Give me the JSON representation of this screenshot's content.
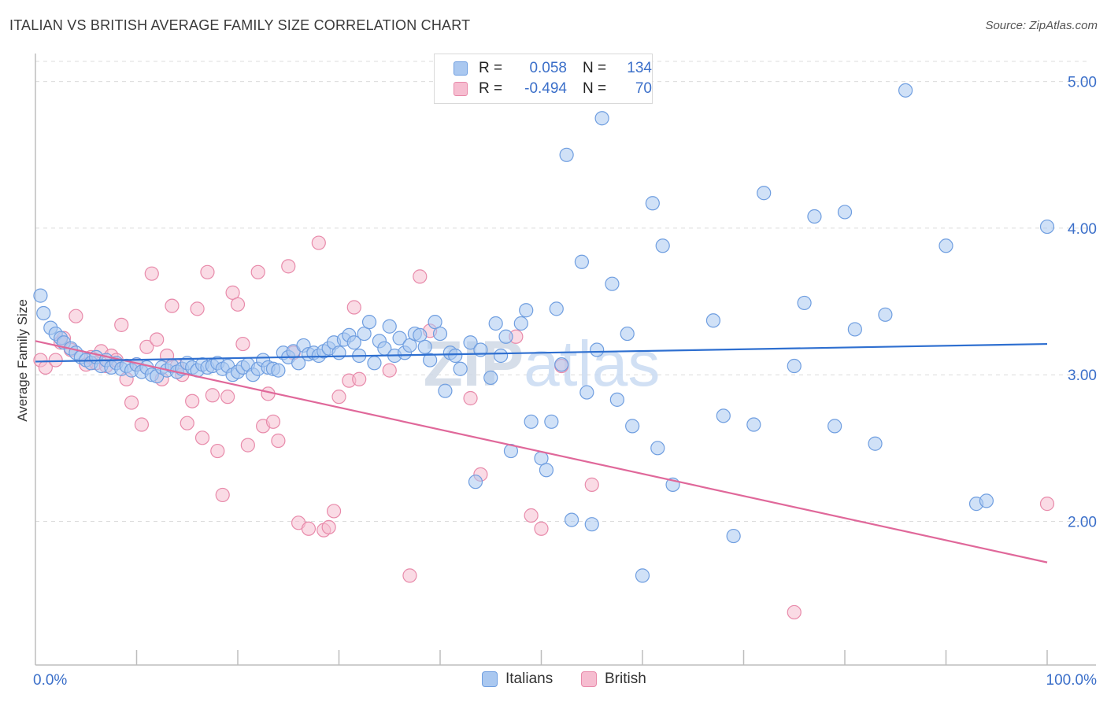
{
  "header": {
    "title": "ITALIAN VS BRITISH AVERAGE FAMILY SIZE CORRELATION CHART",
    "source": "Source: ZipAtlas.com"
  },
  "watermark": "ZIPatlas",
  "colors": {
    "italians_fill": "#aac8f0",
    "italians_stroke": "#6f9ee0",
    "italians_line": "#2e6fd0",
    "british_fill": "#f6bdd0",
    "british_stroke": "#e88aaa",
    "british_line": "#e0689a",
    "tick_label": "#3b6fc9"
  },
  "legend": {
    "italians": {
      "r_label": "R =",
      "r_value": "0.058",
      "n_label": "N =",
      "n_value": "134"
    },
    "british": {
      "r_label": "R =",
      "r_value": "-0.494",
      "n_label": "N =",
      "n_value": "70"
    }
  },
  "bottom_legend": {
    "italians": "Italians",
    "british": "British"
  },
  "chart_data": {
    "type": "scatter",
    "title": "ITALIAN VS BRITISH AVERAGE FAMILY SIZE CORRELATION CHART",
    "xlabel": "",
    "ylabel": "Average Family Size",
    "xlim": [
      0,
      100
    ],
    "ylim": [
      1.02,
      5.17
    ],
    "x_tick_labels": [
      "0.0%",
      "100.0%"
    ],
    "y_ticks": [
      2.0,
      3.0,
      4.0,
      5.0
    ],
    "y_tick_labels": [
      "2.00",
      "3.00",
      "4.00",
      "5.00"
    ],
    "grid": true,
    "legend_position": "top-center",
    "series": [
      {
        "name": "Italians",
        "r": 0.058,
        "n": 134,
        "trend": {
          "x": [
            0,
            100
          ],
          "y": [
            3.09,
            3.21
          ]
        },
        "points": [
          [
            0.5,
            3.54
          ],
          [
            0.8,
            3.42
          ],
          [
            1.5,
            3.32
          ],
          [
            2,
            3.28
          ],
          [
            2.5,
            3.25
          ],
          [
            2.8,
            3.22
          ],
          [
            3.5,
            3.18
          ],
          [
            4,
            3.15
          ],
          [
            4.5,
            3.12
          ],
          [
            5,
            3.1
          ],
          [
            5.5,
            3.08
          ],
          [
            6,
            3.12
          ],
          [
            6.5,
            3.06
          ],
          [
            7,
            3.1
          ],
          [
            7.5,
            3.05
          ],
          [
            8,
            3.08
          ],
          [
            8.5,
            3.04
          ],
          [
            9,
            3.06
          ],
          [
            9.5,
            3.03
          ],
          [
            10,
            3.07
          ],
          [
            10.5,
            3.02
          ],
          [
            11,
            3.05
          ],
          [
            11.5,
            3.0
          ],
          [
            12,
            2.99
          ],
          [
            12.5,
            3.05
          ],
          [
            13,
            3.03
          ],
          [
            13.5,
            3.06
          ],
          [
            14,
            3.02
          ],
          [
            14.5,
            3.04
          ],
          [
            15,
            3.08
          ],
          [
            15.5,
            3.05
          ],
          [
            16,
            3.03
          ],
          [
            16.5,
            3.07
          ],
          [
            17,
            3.05
          ],
          [
            17.5,
            3.06
          ],
          [
            18,
            3.08
          ],
          [
            18.5,
            3.04
          ],
          [
            19,
            3.06
          ],
          [
            19.5,
            3.0
          ],
          [
            20,
            3.02
          ],
          [
            20.5,
            3.05
          ],
          [
            21,
            3.07
          ],
          [
            21.5,
            3.0
          ],
          [
            22,
            3.04
          ],
          [
            22.5,
            3.1
          ],
          [
            23,
            3.05
          ],
          [
            23.5,
            3.04
          ],
          [
            24,
            3.03
          ],
          [
            24.5,
            3.15
          ],
          [
            25,
            3.12
          ],
          [
            25.5,
            3.16
          ],
          [
            26,
            3.08
          ],
          [
            26.5,
            3.2
          ],
          [
            27,
            3.14
          ],
          [
            27.5,
            3.15
          ],
          [
            28,
            3.13
          ],
          [
            28.5,
            3.16
          ],
          [
            29,
            3.18
          ],
          [
            29.5,
            3.22
          ],
          [
            30,
            3.15
          ],
          [
            30.5,
            3.24
          ],
          [
            31,
            3.27
          ],
          [
            31.5,
            3.22
          ],
          [
            32,
            3.13
          ],
          [
            32.5,
            3.28
          ],
          [
            33,
            3.36
          ],
          [
            33.5,
            3.08
          ],
          [
            34,
            3.23
          ],
          [
            34.5,
            3.18
          ],
          [
            35,
            3.33
          ],
          [
            35.5,
            3.13
          ],
          [
            36,
            3.25
          ],
          [
            36.5,
            3.15
          ],
          [
            37,
            3.2
          ],
          [
            37.5,
            3.28
          ],
          [
            38,
            3.27
          ],
          [
            38.5,
            3.19
          ],
          [
            39,
            3.1
          ],
          [
            39.5,
            3.36
          ],
          [
            40,
            3.28
          ],
          [
            40.5,
            2.89
          ],
          [
            41,
            3.15
          ],
          [
            41.5,
            3.13
          ],
          [
            42,
            3.04
          ],
          [
            43,
            3.22
          ],
          [
            43.5,
            2.27
          ],
          [
            44,
            3.17
          ],
          [
            45,
            2.98
          ],
          [
            45.5,
            3.35
          ],
          [
            46,
            3.13
          ],
          [
            46.5,
            3.26
          ],
          [
            47,
            2.48
          ],
          [
            48,
            3.35
          ],
          [
            48.5,
            3.44
          ],
          [
            49,
            2.68
          ],
          [
            50,
            2.43
          ],
          [
            50.5,
            2.35
          ],
          [
            51,
            2.68
          ],
          [
            51.5,
            3.45
          ],
          [
            52,
            3.07
          ],
          [
            52.5,
            4.5
          ],
          [
            53,
            2.01
          ],
          [
            54,
            3.77
          ],
          [
            54.5,
            2.88
          ],
          [
            55,
            1.98
          ],
          [
            55.5,
            3.17
          ],
          [
            56,
            4.75
          ],
          [
            57,
            3.62
          ],
          [
            57.5,
            2.83
          ],
          [
            58.5,
            3.28
          ],
          [
            59,
            2.65
          ],
          [
            60,
            1.63
          ],
          [
            61,
            4.17
          ],
          [
            61.5,
            2.5
          ],
          [
            62,
            3.88
          ],
          [
            63,
            2.25
          ],
          [
            67,
            3.37
          ],
          [
            68,
            2.72
          ],
          [
            69,
            1.9
          ],
          [
            71,
            2.66
          ],
          [
            72,
            4.24
          ],
          [
            75,
            3.06
          ],
          [
            76,
            3.49
          ],
          [
            77,
            4.08
          ],
          [
            79,
            2.65
          ],
          [
            80,
            4.11
          ],
          [
            81,
            3.31
          ],
          [
            83,
            2.53
          ],
          [
            84,
            3.41
          ],
          [
            86,
            4.94
          ],
          [
            90,
            3.88
          ],
          [
            93,
            2.12
          ],
          [
            94,
            2.14
          ],
          [
            100,
            4.01
          ]
        ]
      },
      {
        "name": "British",
        "r": -0.494,
        "n": 70,
        "trend": {
          "x": [
            0,
            100
          ],
          "y": [
            3.23,
            1.72
          ]
        },
        "points": [
          [
            0.5,
            3.1
          ],
          [
            1,
            3.05
          ],
          [
            2,
            3.1
          ],
          [
            2.5,
            3.22
          ],
          [
            3.5,
            3.17
          ],
          [
            4,
            3.4
          ],
          [
            5,
            3.07
          ],
          [
            5.5,
            3.12
          ],
          [
            6,
            3.08
          ],
          [
            6.5,
            3.16
          ],
          [
            7,
            3.06
          ],
          [
            7.5,
            3.13
          ],
          [
            8,
            3.1
          ],
          [
            8.5,
            3.34
          ],
          [
            9,
            2.97
          ],
          [
            9.5,
            2.81
          ],
          [
            10,
            3.07
          ],
          [
            10.5,
            2.66
          ],
          [
            11,
            3.19
          ],
          [
            11.5,
            3.69
          ],
          [
            12,
            3.24
          ],
          [
            12.5,
            2.97
          ],
          [
            13,
            3.13
          ],
          [
            13.5,
            3.47
          ],
          [
            14,
            3.06
          ],
          [
            14.5,
            3.0
          ],
          [
            15,
            2.67
          ],
          [
            15.5,
            2.82
          ],
          [
            16,
            3.45
          ],
          [
            16.5,
            2.57
          ],
          [
            17,
            3.7
          ],
          [
            17.5,
            2.86
          ],
          [
            18,
            2.48
          ],
          [
            18.5,
            2.18
          ],
          [
            19,
            2.85
          ],
          [
            19.5,
            3.56
          ],
          [
            20,
            3.48
          ],
          [
            20.5,
            3.21
          ],
          [
            21,
            2.52
          ],
          [
            22,
            3.7
          ],
          [
            22.5,
            2.65
          ],
          [
            23,
            2.87
          ],
          [
            23.5,
            2.68
          ],
          [
            24,
            2.55
          ],
          [
            25,
            3.74
          ],
          [
            25.5,
            3.15
          ],
          [
            26,
            1.99
          ],
          [
            27,
            1.95
          ],
          [
            28,
            3.9
          ],
          [
            28.5,
            1.94
          ],
          [
            29,
            1.96
          ],
          [
            29.5,
            2.07
          ],
          [
            30,
            2.85
          ],
          [
            31,
            2.96
          ],
          [
            31.5,
            3.46
          ],
          [
            32,
            2.97
          ],
          [
            35,
            3.03
          ],
          [
            37,
            1.63
          ],
          [
            38,
            3.67
          ],
          [
            39,
            3.3
          ],
          [
            43,
            2.84
          ],
          [
            44,
            2.32
          ],
          [
            47.5,
            3.26
          ],
          [
            49,
            2.04
          ],
          [
            50,
            1.95
          ],
          [
            52,
            3.06
          ],
          [
            55,
            2.25
          ],
          [
            75,
            1.38
          ],
          [
            100,
            2.12
          ],
          [
            2.8,
            3.25
          ]
        ]
      }
    ]
  }
}
